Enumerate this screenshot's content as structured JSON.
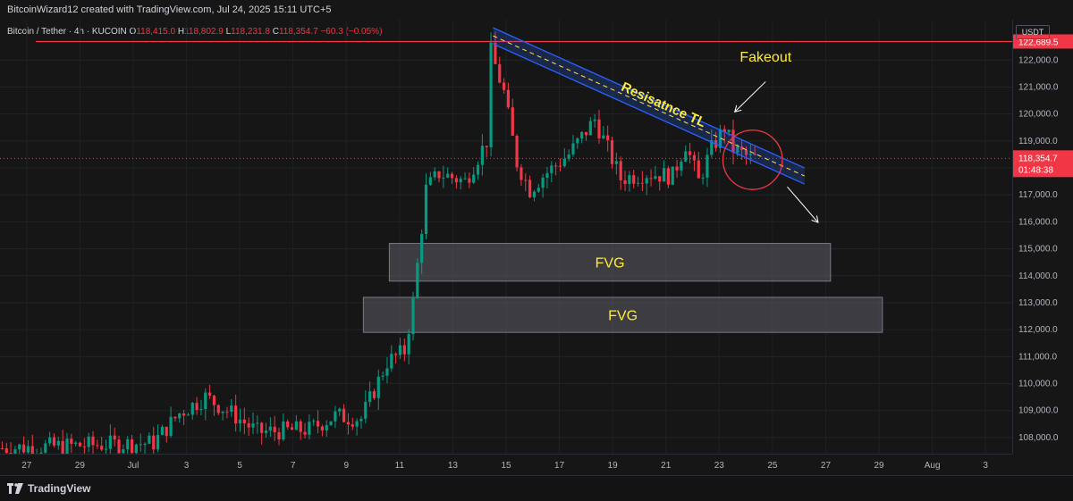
{
  "header": {
    "attribution": "BitcoinWizard12 created with TradingView.com, Jul 24, 2025 15:11 UTC+5"
  },
  "legend": {
    "symbol": "Bitcoin / Tether · 4h · KUCOIN",
    "o_label": "O",
    "o_value": "118,415.0",
    "h_label": "H",
    "h_value": "118,802.9",
    "l_label": "L",
    "l_value": "118,231.8",
    "c_label": "C",
    "c_value": "118,354.7",
    "change": "−60.3 (−0.05%)"
  },
  "price_scale": {
    "currency": "USDT",
    "ticks": [
      "122,000.0",
      "121,000.0",
      "120,000.0",
      "119,000.0",
      "118,000.0",
      "117,000.0",
      "116,000.0",
      "115,000.0",
      "114,000.0",
      "113,000.0",
      "112,000.0",
      "111,000.0",
      "110,000.0",
      "109,000.0",
      "108,000.0"
    ],
    "high_label": "122,689.5",
    "last_price_label": "118,354.7",
    "countdown_label": "01:48:38"
  },
  "time_scale": {
    "ticks": [
      "27",
      "29",
      "Jul",
      "3",
      "5",
      "7",
      "9",
      "11",
      "13",
      "15",
      "17",
      "19",
      "21",
      "23",
      "25",
      "27",
      "29",
      "Aug",
      "3"
    ]
  },
  "footer": {
    "brand": "TradingView"
  },
  "colors": {
    "up": "#089981",
    "down": "#f23645",
    "resistance_line": "#f23645",
    "channel": "#2962ff",
    "annotation_text": "#ffeb3b",
    "fvg_fill": "#5d5d66"
  },
  "chart_data": {
    "type": "candlestick",
    "symbol": "Bitcoin / Tether",
    "timeframe": "4h",
    "exchange": "KUCOIN",
    "ylim": [
      107400,
      123500
    ],
    "xlim": [
      "2025-06-25",
      "2025-08-03"
    ],
    "x_ticks": [
      "27",
      "29",
      "Jul",
      "3",
      "5",
      "7",
      "9",
      "11",
      "13",
      "15",
      "17",
      "19",
      "21",
      "23",
      "25",
      "27",
      "29",
      "Aug",
      "3"
    ],
    "horizontal_line": {
      "value": 122689.5
    },
    "last_price": 118354.7,
    "ohlc": {
      "open": 118415.0,
      "high": 118802.9,
      "low": 118231.8,
      "close": 118354.7,
      "change": -60.3,
      "change_pct": -0.05
    },
    "path": [
      [
        "2025-06-25",
        107600
      ],
      [
        "2025-06-28",
        107700
      ],
      [
        "2025-07-01",
        107800
      ],
      [
        "2025-07-02",
        108900
      ],
      [
        "2025-07-03",
        109500
      ],
      [
        "2025-07-04",
        108900
      ],
      [
        "2025-07-05",
        108200
      ],
      [
        "2025-07-07",
        108300
      ],
      [
        "2025-07-08",
        108800
      ],
      [
        "2025-07-09",
        108700
      ],
      [
        "2025-07-10",
        110800
      ],
      [
        "2025-07-10T16",
        111200
      ],
      [
        "2025-07-11",
        113000
      ],
      [
        "2025-07-11T12",
        117200
      ],
      [
        "2025-07-12",
        117800
      ],
      [
        "2025-07-13",
        117500
      ],
      [
        "2025-07-13T20",
        119000
      ],
      [
        "2025-07-14",
        122300
      ],
      [
        "2025-07-14T12",
        120800
      ],
      [
        "2025-07-15",
        118200
      ],
      [
        "2025-07-15T12",
        117200
      ],
      [
        "2025-07-16",
        117700
      ],
      [
        "2025-07-17",
        118500
      ],
      [
        "2025-07-18",
        119800
      ],
      [
        "2025-07-19",
        117600
      ],
      [
        "2025-07-20",
        117800
      ],
      [
        "2025-07-21",
        117700
      ],
      [
        "2025-07-21T12",
        118900
      ],
      [
        "2025-07-22",
        117500
      ],
      [
        "2025-07-22T12",
        118700
      ],
      [
        "2025-07-23",
        119500
      ],
      [
        "2025-07-23T08",
        118700
      ],
      [
        "2025-07-24",
        118350
      ]
    ],
    "annotations": [
      {
        "type": "text",
        "text": "Fakeout",
        "date": "2025-07-24T12",
        "value": 121950
      },
      {
        "type": "text",
        "text": "Resisatnce TL",
        "date": "2025-07-20T12",
        "value": 120200
      },
      {
        "type": "channel",
        "start": [
          "2025-07-14",
          122900
        ],
        "end": [
          "2025-07-26",
          117700
        ]
      },
      {
        "type": "arrow",
        "from": [
          "2025-07-24T12",
          121200
        ],
        "to": [
          "2025-07-23T08",
          120100
        ]
      },
      {
        "type": "arrow",
        "from": [
          "2025-07-25T08",
          117300
        ],
        "to": [
          "2025-07-26T12",
          116000
        ]
      },
      {
        "type": "circle",
        "center": [
          "2025-07-24",
          118300
        ],
        "radius_value": 1100
      },
      {
        "type": "zone",
        "label": "FVG",
        "start": "2025-07-10",
        "end": "2025-07-27",
        "top": 115200,
        "bottom": 113800
      },
      {
        "type": "zone",
        "label": "FVG",
        "start": "2025-07-09",
        "end": "2025-07-29",
        "top": 113200,
        "bottom": 111900
      }
    ]
  }
}
